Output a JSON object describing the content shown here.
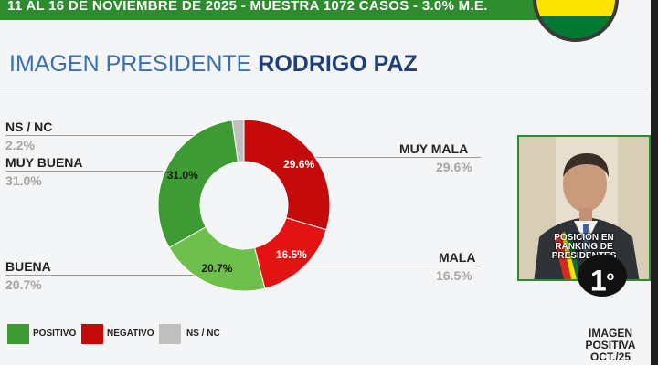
{
  "banner": {
    "text": "11 AL 16 DE NOVIEMBRE DE 2025 - MUESTRA 1072 CASOS - 3.0% M.E."
  },
  "title": {
    "prefix": "IMAGEN PRESIDENTE ",
    "name": "RODRIGO PAZ"
  },
  "chart_data": {
    "type": "pie",
    "donut": true,
    "categories": [
      "MUY MALA",
      "MALA",
      "BUENA",
      "MUY BUENA",
      "NS / NC"
    ],
    "values": [
      29.6,
      16.5,
      20.7,
      31.0,
      2.2
    ],
    "value_labels": [
      "29.6%",
      "16.5%",
      "20.7%",
      "31.0%",
      ""
    ],
    "colors": [
      "#c40a0a",
      "#e31313",
      "#6ebf4b",
      "#3e9a32",
      "#bfbfbf"
    ],
    "series_groups": [
      {
        "name": "POSITIVO",
        "color": "#3e9a32"
      },
      {
        "name": "NEGATIVO",
        "color": "#c40a0a"
      },
      {
        "name": "NS / NC",
        "color": "#bfbfbf"
      }
    ]
  },
  "labels": {
    "nsnc": {
      "name": "NS / NC",
      "value": "2.2%"
    },
    "muy_buena": {
      "name": "MUY BUENA",
      "value": "31.0%"
    },
    "buena": {
      "name": "BUENA",
      "value": "20.7%"
    },
    "muy_mala": {
      "name": "MUY MALA",
      "value": "29.6%"
    },
    "mala": {
      "name": "MALA",
      "value": "16.5%"
    }
  },
  "legend": {
    "positivo": "POSITIVO",
    "negativo": "NEGATIVO",
    "nsnc": "NS / NC"
  },
  "rank": {
    "label": "POSICIÓN EN RANKING DE PRESIDENTES",
    "position": "1",
    "suffix": "o"
  },
  "footer": {
    "line1": "IMAGEN",
    "line2": "POSITIVA",
    "line3": "OCT./25"
  }
}
